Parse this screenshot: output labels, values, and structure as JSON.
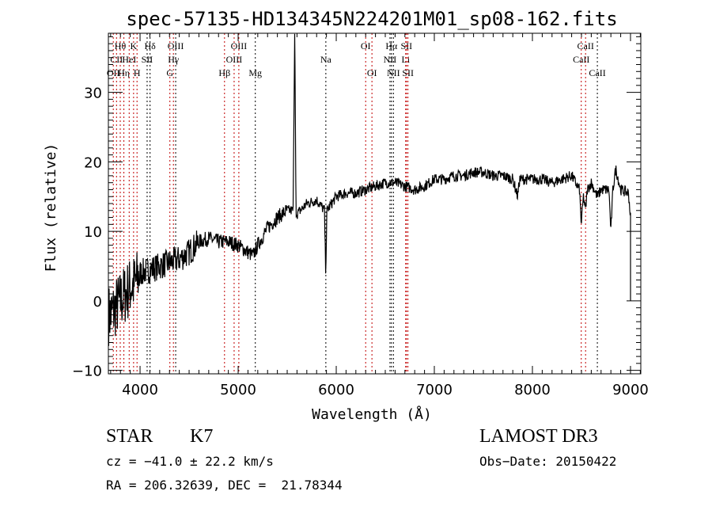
{
  "chart_data": {
    "type": "line",
    "title": "spec-57135-HD134345N224201M01_sp08-162.fits",
    "xlabel": "Wavelength (Å)",
    "ylabel": "Flux (relative)",
    "xlim": [
      3677,
      9105
    ],
    "ylim": [
      -10.5,
      38.5
    ],
    "xticks": [
      4000,
      5000,
      6000,
      7000,
      8000,
      9000
    ],
    "yticks": [
      -10,
      0,
      10,
      20,
      30
    ],
    "grid": false,
    "series": [
      {
        "name": "spectrum",
        "x": [
          3700,
          3750,
          3800,
          3850,
          3900,
          3950,
          4000,
          4100,
          4200,
          4300,
          4400,
          4500,
          4600,
          4700,
          4800,
          4900,
          5000,
          5100,
          5150,
          5200,
          5300,
          5400,
          5500,
          5560,
          5577,
          5590,
          5600,
          5700,
          5800,
          5880,
          5893,
          5905,
          6000,
          6100,
          6200,
          6300,
          6400,
          6500,
          6600,
          6700,
          6800,
          6900,
          7000,
          7100,
          7200,
          7300,
          7400,
          7500,
          7600,
          7700,
          7800,
          7850,
          7870,
          7900,
          8000,
          8100,
          8200,
          8300,
          8400,
          8480,
          8498,
          8520,
          8542,
          8560,
          8600,
          8662,
          8700,
          8780,
          8800,
          8820,
          8850,
          8900,
          8980,
          9000,
          9010
        ],
        "y": [
          -2,
          -1,
          0,
          1,
          2,
          2.5,
          4,
          4.5,
          5,
          5.5,
          6,
          7,
          8.5,
          9,
          8.5,
          8.5,
          8,
          7,
          6.5,
          8,
          10.5,
          12,
          13,
          13,
          40,
          13,
          12.5,
          14,
          14.5,
          13,
          4,
          13,
          15,
          15.5,
          15.5,
          16,
          16.5,
          17,
          17,
          16.5,
          16,
          16.5,
          17.5,
          17.5,
          18,
          18,
          18.5,
          18.5,
          18,
          18,
          17.5,
          15,
          17.5,
          17.5,
          17.5,
          17.5,
          17,
          17.5,
          18,
          16,
          11,
          15,
          13,
          16,
          17,
          15,
          16,
          16,
          10,
          16,
          19,
          16,
          15.5,
          12,
          0
        ]
      }
    ],
    "lines": [
      {
        "label": "OII",
        "wave": 3727,
        "row": 3,
        "color": "#c00000"
      },
      {
        "label": "CII",
        "wave": 3760,
        "row": 2,
        "color": "#c00000"
      },
      {
        "label": "Hθ",
        "wave": 3798,
        "row": 1,
        "color": "#c00000"
      },
      {
        "label": "Hη",
        "wave": 3835,
        "row": 3,
        "color": "#c00000"
      },
      {
        "label": "HeI",
        "wave": 3889,
        "row": 2,
        "color": "#c00000"
      },
      {
        "label": "K",
        "wave": 3934,
        "row": 1,
        "color": "#c00000"
      },
      {
        "label": "H",
        "wave": 3969,
        "row": 3,
        "color": "#c00000"
      },
      {
        "label": "SII",
        "wave": 4072,
        "row": 2,
        "color": "#000000"
      },
      {
        "label": "Hδ",
        "wave": 4102,
        "row": 1,
        "color": "#000000"
      },
      {
        "label": "G",
        "wave": 4304,
        "row": 3,
        "color": "#c00000"
      },
      {
        "label": "Hγ",
        "wave": 4340,
        "row": 2,
        "color": "#c00000"
      },
      {
        "label": "OIII",
        "wave": 4363,
        "row": 1,
        "color": "#000000"
      },
      {
        "label": "Hβ",
        "wave": 4861,
        "row": 3,
        "color": "#c00000"
      },
      {
        "label": "OIII",
        "wave": 4959,
        "row": 2,
        "color": "#c00000"
      },
      {
        "label": "OIII",
        "wave": 5007,
        "row": 1,
        "color": "#c00000"
      },
      {
        "label": "Mg",
        "wave": 5175,
        "row": 3,
        "color": "#000000"
      },
      {
        "label": "Na",
        "wave": 5894,
        "row": 2,
        "color": "#000000"
      },
      {
        "label": "OI",
        "wave": 6300,
        "row": 1,
        "color": "#c00000"
      },
      {
        "label": "OI",
        "wave": 6364,
        "row": 3,
        "color": "#c00000"
      },
      {
        "label": "NII",
        "wave": 6548,
        "row": 2,
        "color": "#000000"
      },
      {
        "label": "Hα",
        "wave": 6563,
        "row": 1,
        "color": "#000000"
      },
      {
        "label": "NII",
        "wave": 6583,
        "row": 3,
        "color": "#000000"
      },
      {
        "label": "Li",
        "wave": 6708,
        "row": 2,
        "color": "#c00000"
      },
      {
        "label": "SII",
        "wave": 6716,
        "row": 1,
        "color": "#c00000"
      },
      {
        "label": "SII",
        "wave": 6731,
        "row": 3,
        "color": "#c00000"
      },
      {
        "label": "CaII",
        "wave": 8498,
        "row": 2,
        "color": "#c00000"
      },
      {
        "label": "CaII",
        "wave": 8542,
        "row": 1,
        "color": "#c00000"
      },
      {
        "label": "CaII",
        "wave": 8662,
        "row": 3,
        "color": "#000000"
      }
    ]
  },
  "info": {
    "class": "STAR",
    "subclass": "K7",
    "survey": "LAMOST DR3",
    "cz": "cz = −41.0 ± 22.2 km/s",
    "obs_date": "Obs−Date: 20150422",
    "coords": "RA = 206.32639, DEC =  21.78344"
  }
}
